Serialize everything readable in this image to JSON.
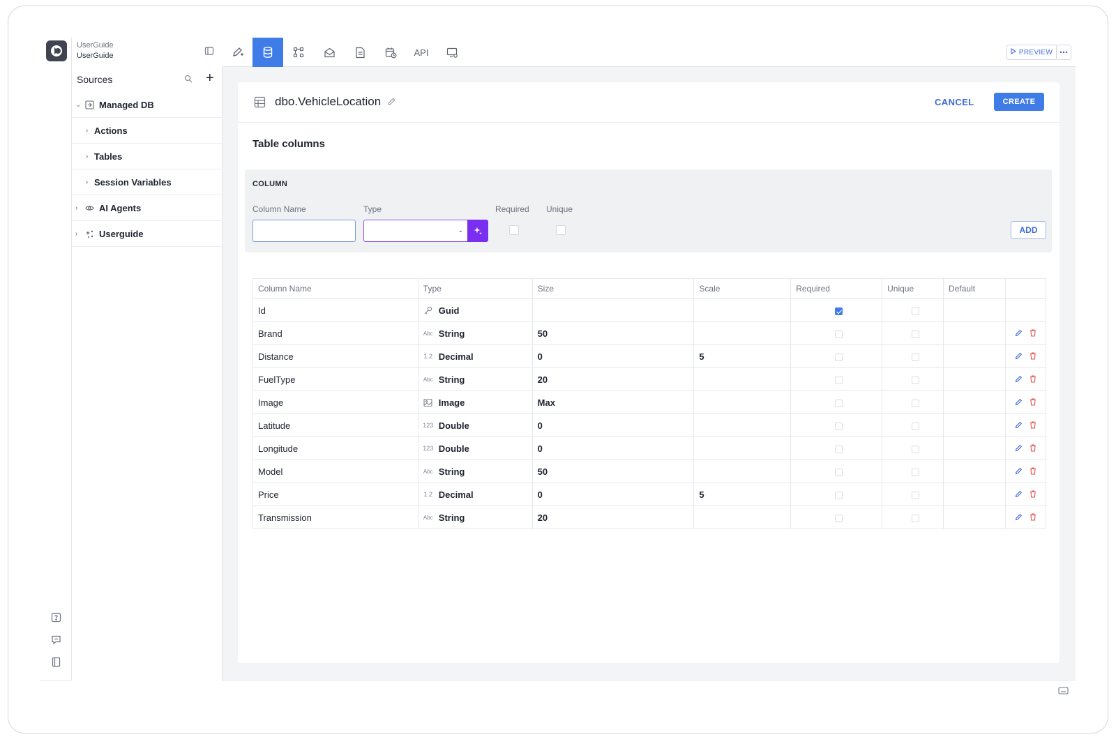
{
  "app": {
    "title": "UserGuide",
    "subtitle": "UserGuide"
  },
  "toolbar": {
    "tabs": [
      {
        "name": "design-tab",
        "icon": "pen-plus-icon"
      },
      {
        "name": "data-tab",
        "icon": "database-icon",
        "active": true
      },
      {
        "name": "workflow-tab",
        "icon": "workflow-icon"
      },
      {
        "name": "email-tab",
        "icon": "envelope-open-icon"
      },
      {
        "name": "document-tab",
        "icon": "document-icon"
      },
      {
        "name": "schedule-tab",
        "icon": "calendar-clock-icon"
      },
      {
        "name": "api-tab",
        "label": "API"
      },
      {
        "name": "desktop-tab",
        "icon": "monitor-gear-icon"
      }
    ],
    "preview_label": "PREVIEW",
    "more_label": "⋯"
  },
  "sidebar": {
    "title": "Sources",
    "items": [
      {
        "label": "Managed DB",
        "icon": "db-export-icon",
        "expanded": true
      },
      {
        "label": "Actions"
      },
      {
        "label": "Tables"
      },
      {
        "label": "Session Variables"
      },
      {
        "label": "AI Agents",
        "icon": "eye-icon"
      },
      {
        "label": "Userguide",
        "icon": "sparkle-nodes-icon"
      }
    ]
  },
  "editor": {
    "table_name": "dbo.VehicleLocation",
    "cancel_label": "CANCEL",
    "create_label": "CREATE",
    "section_title": "Table columns",
    "form": {
      "title": "COLUMN",
      "column_name_label": "Column Name",
      "type_label": "Type",
      "required_label": "Required",
      "unique_label": "Unique",
      "column_name_value": "",
      "type_value": "",
      "add_label": "ADD"
    },
    "headers": [
      "Column Name",
      "Type",
      "Size",
      "Scale",
      "Required",
      "Unique",
      "Default",
      ""
    ],
    "rows": [
      {
        "name": "Id",
        "type": "Guid",
        "type_icon": "key",
        "size": "",
        "scale": "",
        "required": true,
        "unique": false,
        "default": "",
        "editable": false
      },
      {
        "name": "Brand",
        "type": "String",
        "type_icon": "Abc",
        "size": "50",
        "scale": "",
        "required": false,
        "unique": false,
        "default": "",
        "editable": true
      },
      {
        "name": "Distance",
        "type": "Decimal",
        "type_icon": "1.2",
        "size": "0",
        "scale": "5",
        "required": false,
        "unique": false,
        "default": "",
        "editable": true
      },
      {
        "name": "FuelType",
        "type": "String",
        "type_icon": "Abc",
        "size": "20",
        "scale": "",
        "required": false,
        "unique": false,
        "default": "",
        "editable": true
      },
      {
        "name": "Image",
        "type": "Image",
        "type_icon": "image",
        "size": "Max",
        "scale": "",
        "required": false,
        "unique": false,
        "default": "",
        "editable": true
      },
      {
        "name": "Latitude",
        "type": "Double",
        "type_icon": "123",
        "size": "0",
        "scale": "",
        "required": false,
        "unique": false,
        "default": "",
        "editable": true
      },
      {
        "name": "Longitude",
        "type": "Double",
        "type_icon": "123",
        "size": "0",
        "scale": "",
        "required": false,
        "unique": false,
        "default": "",
        "editable": true
      },
      {
        "name": "Model",
        "type": "String",
        "type_icon": "Abc",
        "size": "50",
        "scale": "",
        "required": false,
        "unique": false,
        "default": "",
        "editable": true
      },
      {
        "name": "Price",
        "type": "Decimal",
        "type_icon": "1.2",
        "size": "0",
        "scale": "5",
        "required": false,
        "unique": false,
        "default": "",
        "editable": true
      },
      {
        "name": "Transmission",
        "type": "String",
        "type_icon": "Abc",
        "size": "20",
        "scale": "",
        "required": false,
        "unique": false,
        "default": "",
        "editable": true
      }
    ]
  },
  "colors": {
    "accent": "#3f7ce8",
    "ai": "#7a2ff0",
    "delete": "#e0504a"
  }
}
